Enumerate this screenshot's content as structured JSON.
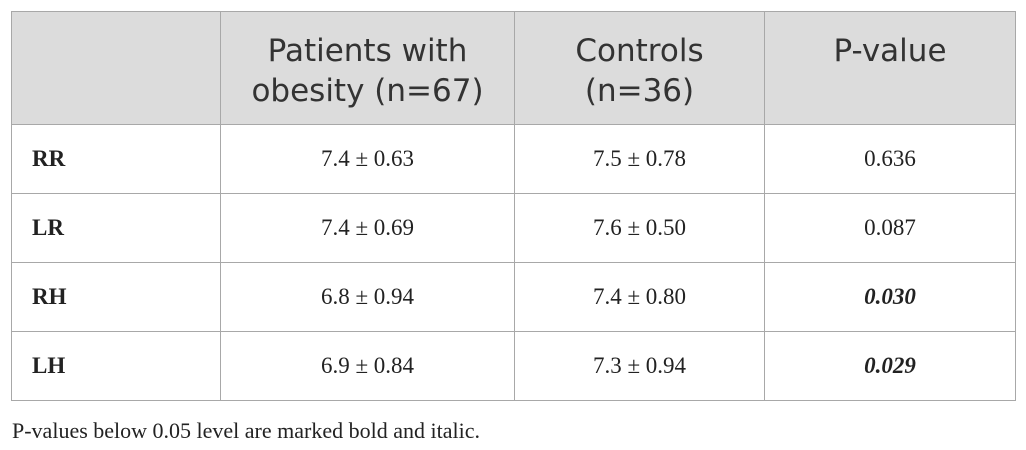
{
  "table": {
    "headers": [
      "",
      "Patients with obesity (n=67)",
      "Controls (n=36)",
      "P-value"
    ],
    "header_lines": {
      "patients": [
        "Patients with",
        "obesity (n=67)"
      ],
      "controls": [
        "Controls",
        "(n=36)"
      ],
      "pvalue": [
        "P-value"
      ]
    },
    "rows": [
      {
        "label": "RR",
        "patients": "7.4 ± 0.63",
        "controls": "7.5 ± 0.78",
        "pvalue": "0.636",
        "significant": false
      },
      {
        "label": "LR",
        "patients": "7.4 ± 0.69",
        "controls": "7.6 ± 0.50",
        "pvalue": "0.087",
        "significant": false
      },
      {
        "label": "RH",
        "patients": "6.8 ± 0.94",
        "controls": "7.4 ± 0.80",
        "pvalue": "0.030",
        "significant": true
      },
      {
        "label": "LH",
        "patients": "6.9 ± 0.84",
        "controls": "7.3 ± 0.94",
        "pvalue": "0.029",
        "significant": true
      }
    ]
  },
  "footnote": "P-values below 0.05 level are marked bold and italic.",
  "colors": {
    "header_background": "#dcdcdc",
    "border": "#a8a8a8",
    "text": "#222222"
  }
}
